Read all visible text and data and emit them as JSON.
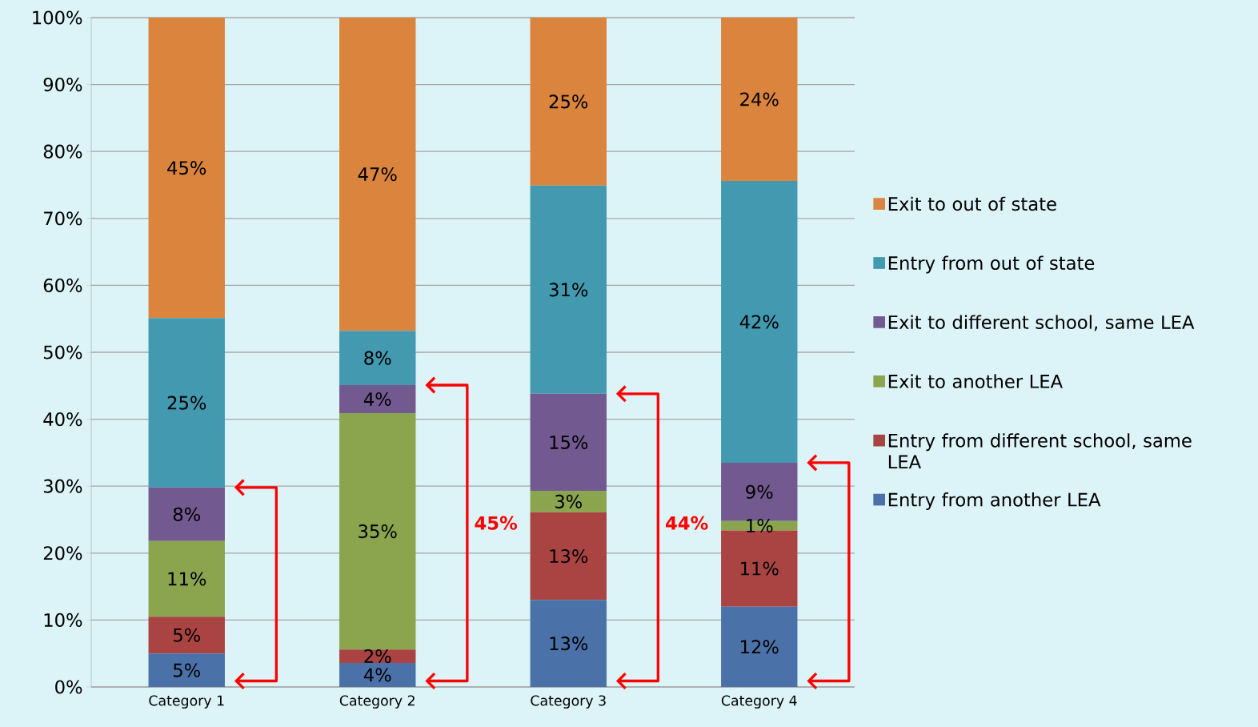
{
  "chart_data": {
    "type": "bar",
    "stacked": true,
    "categories": [
      "Category 1",
      "Category 2",
      "Category 3",
      "Category 4"
    ],
    "series": [
      {
        "name": "Entry from another LEA",
        "color": "#4a72a8",
        "values": [
          5.0,
          3.6,
          13.0,
          12.0
        ],
        "value_labels": [
          "5%",
          "4%",
          "13%",
          "12%"
        ]
      },
      {
        "name": "Entry from different school, same LEA",
        "color": "#a94442",
        "values": [
          5.5,
          2.0,
          13.1,
          11.4
        ],
        "value_labels": [
          "5%",
          "2%",
          "13%",
          "11%"
        ]
      },
      {
        "name": "Exit to another LEA",
        "color": "#8aa54e",
        "values": [
          11.3,
          35.3,
          3.2,
          1.4
        ],
        "value_labels": [
          "11%",
          "35%",
          "3%",
          "1%"
        ]
      },
      {
        "name": "Exit to different school, same LEA",
        "color": "#725a91",
        "values": [
          8.0,
          4.2,
          14.5,
          8.7
        ],
        "value_labels": [
          "8%",
          "4%",
          "15%",
          "9%"
        ]
      },
      {
        "name": "Entry from out of state",
        "color": "#4299b0",
        "values": [
          25.3,
          8.1,
          31.1,
          42.1
        ],
        "value_labels": [
          "25%",
          "8%",
          "31%",
          "42%"
        ]
      },
      {
        "name": "Exit to out of state",
        "color": "#da843d",
        "values": [
          44.9,
          46.8,
          25.1,
          24.4
        ],
        "value_labels": [
          "45%",
          "47%",
          "25%",
          "24%"
        ]
      }
    ],
    "ylim": [
      0,
      100
    ],
    "yticks": [
      {
        "value": 0,
        "label": "0%"
      },
      {
        "value": 10,
        "label": "10%"
      },
      {
        "value": 20,
        "label": "20%"
      },
      {
        "value": 30,
        "label": "30%"
      },
      {
        "value": 40,
        "label": "40%"
      },
      {
        "value": 50,
        "label": "50%"
      },
      {
        "value": 60,
        "label": "60%"
      },
      {
        "value": 70,
        "label": "70%"
      },
      {
        "value": 80,
        "label": "80%"
      },
      {
        "value": 90,
        "label": "90%"
      },
      {
        "value": 100,
        "label": "100%"
      }
    ],
    "grid": "y",
    "legend": "right",
    "annotations": [
      "45%",
      "44%"
    ]
  }
}
